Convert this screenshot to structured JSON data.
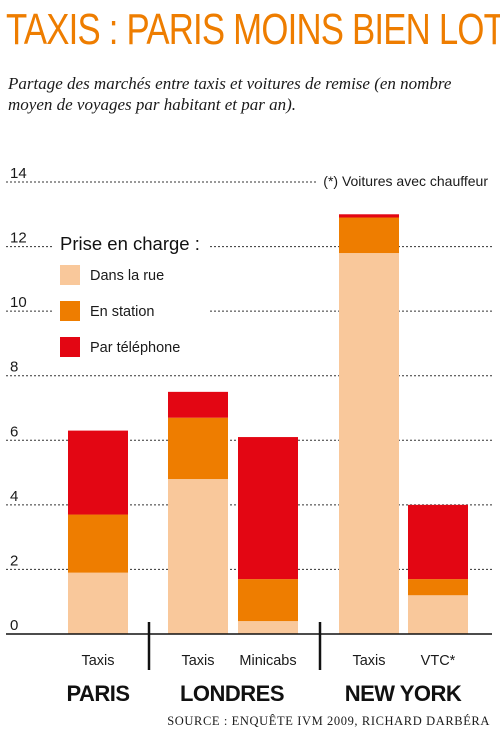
{
  "title": "TAXIS : PARIS MOINS BIEN LOTI",
  "subtitle": "Partage des marchés entre taxis et voitures de remise (en nombre moyen de voyages par habitant et par an).",
  "source": "SOURCE : ENQUÊTE IVM 2009, RICHARD DARBÉRA",
  "chart_data": {
    "type": "bar",
    "stacked": true,
    "ylim": [
      0,
      14
    ],
    "yticks": [
      0,
      2,
      4,
      6,
      8,
      10,
      12,
      14
    ],
    "grid": true,
    "note": "(*) Voitures avec chauffeur",
    "legend_title": "Prise en charge :",
    "legend_position": "top-left",
    "groups": [
      {
        "name": "PARIS",
        "categories": [
          "Taxis"
        ]
      },
      {
        "name": "LONDRES",
        "categories": [
          "Taxis",
          "Minicabs"
        ]
      },
      {
        "name": "NEW YORK",
        "categories": [
          "Taxis",
          "VTC*"
        ]
      }
    ],
    "categories": [
      "Taxis",
      "Taxis",
      "Minicabs",
      "Taxis",
      "VTC*"
    ],
    "series": [
      {
        "name": "Dans la rue",
        "color": "#f9c89b",
        "values": [
          1.9,
          4.8,
          0.4,
          11.8,
          1.2
        ]
      },
      {
        "name": "En station",
        "color": "#ee7d00",
        "values": [
          1.8,
          1.9,
          1.3,
          1.1,
          0.5
        ]
      },
      {
        "name": "Par téléphone",
        "color": "#e30613",
        "values": [
          2.6,
          0.8,
          4.4,
          0.1,
          2.3
        ]
      }
    ]
  }
}
